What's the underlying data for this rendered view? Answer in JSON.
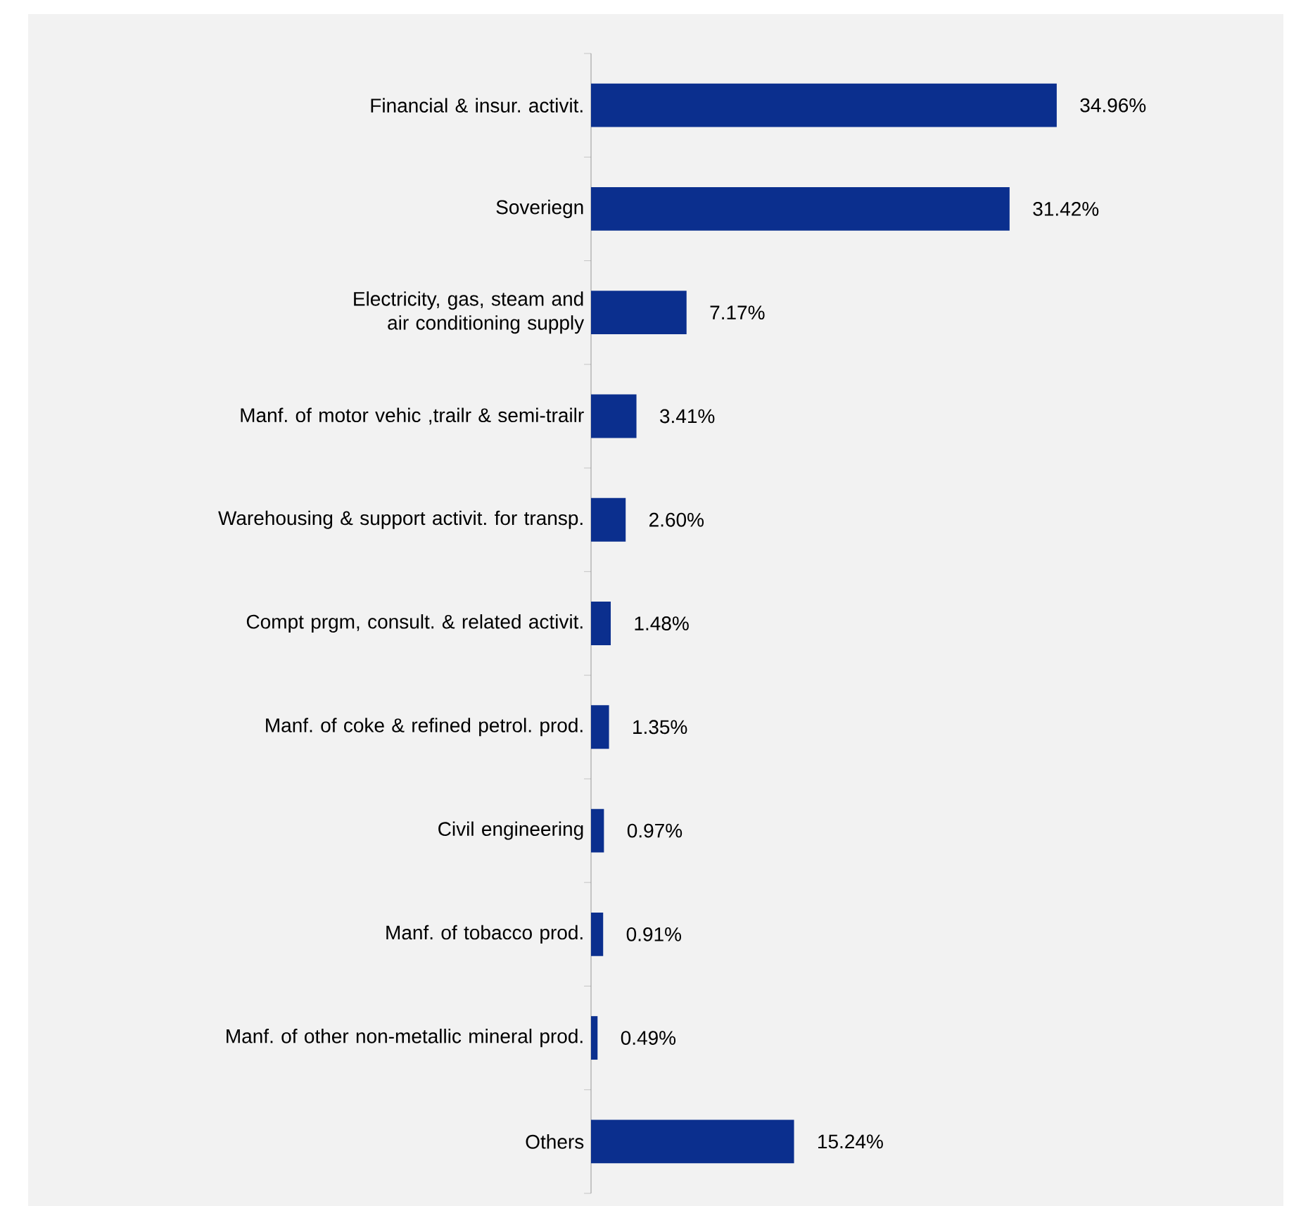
{
  "chart_data": {
    "type": "bar",
    "orientation": "horizontal",
    "categories": [
      "Financial & insur. activit.",
      "Soveriegn",
      "Electricity, gas, steam and air conditioning supply",
      "Manf. of motor vehic ,trailr & semi-trailr",
      "Warehousing & support activit. for transp.",
      "Compt prgm, consult. & related activit.",
      "Manf. of coke & refined petrol. prod.",
      "Civil engineering",
      "Manf. of tobacco prod.",
      "Manf. of other non-metallic mineral prod.",
      "Others"
    ],
    "values": [
      34.96,
      31.42,
      7.17,
      3.41,
      2.6,
      1.48,
      1.35,
      0.97,
      0.91,
      0.49,
      15.24
    ],
    "value_labels": [
      "34.96%",
      "31.42%",
      "7.17%",
      "3.41%",
      "2.60%",
      "1.48%",
      "1.35%",
      "0.97%",
      "0.91%",
      "0.49%",
      "15.24%"
    ],
    "color": "#0b2f8e"
  }
}
